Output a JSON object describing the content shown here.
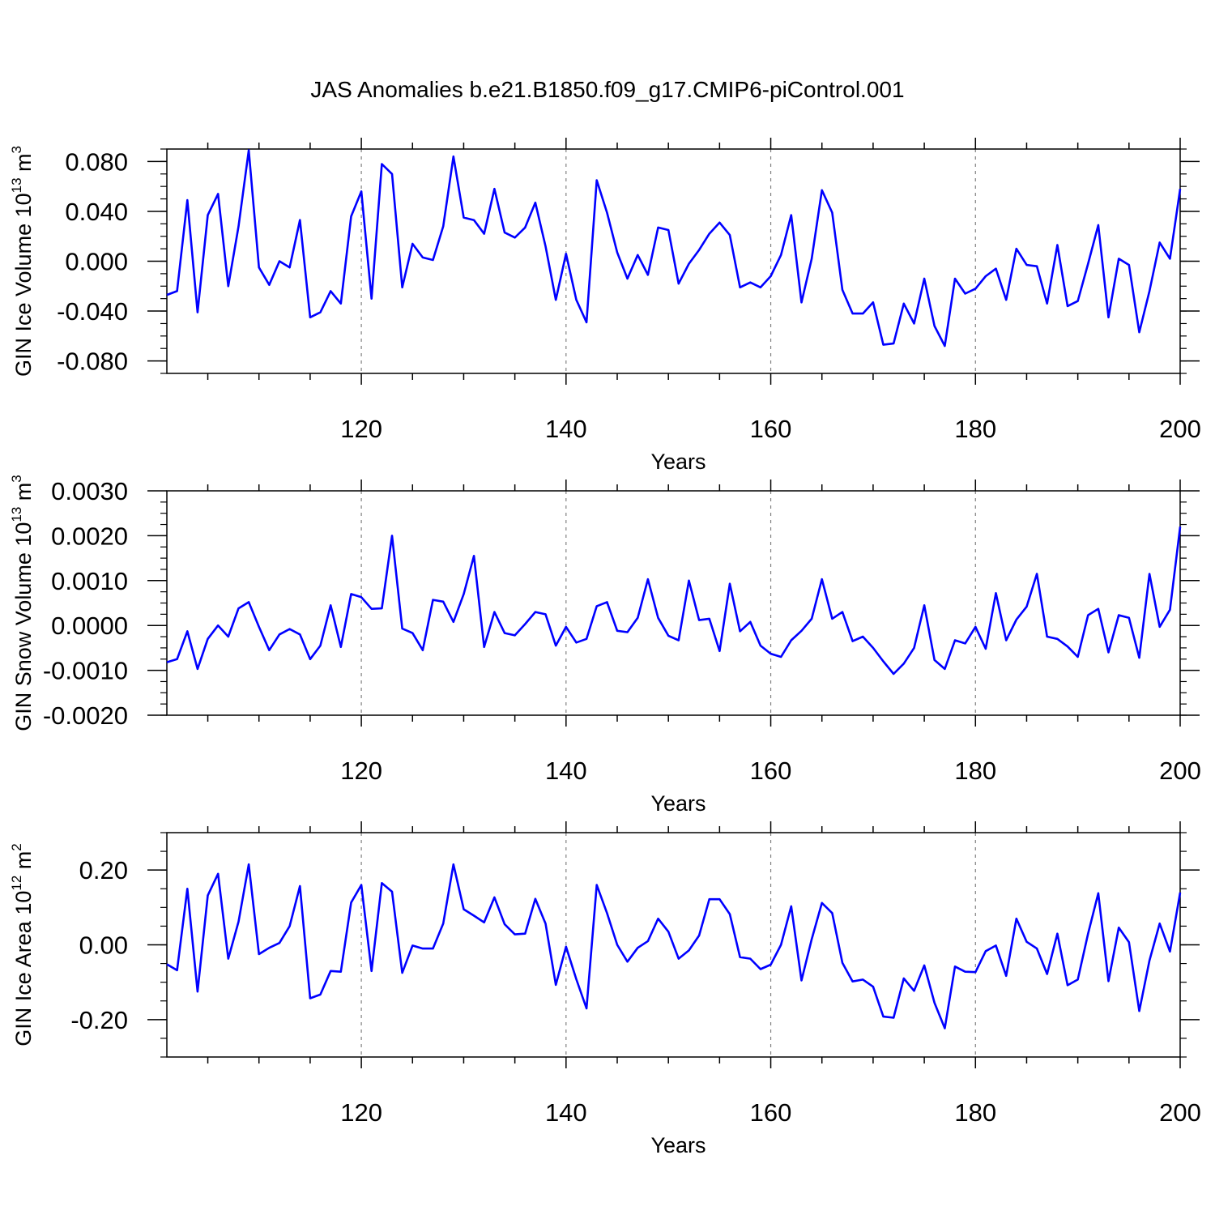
{
  "title": "JAS Anomalies b.e21.B1850.f09_g17.CMIP6-piControl.001",
  "colors": {
    "line": "#0000ff",
    "axis": "#000000",
    "grid": "#808080"
  },
  "chart_data": [
    {
      "type": "line",
      "xlabel": "Years",
      "ylabel": {
        "main": "GIN Ice Volume 10",
        "exp": "13",
        "unit": " m",
        "unit_exp": "3"
      },
      "xlim": [
        101,
        200
      ],
      "ylim": [
        -0.09,
        0.09
      ],
      "xticks": [
        "120",
        "140",
        "160",
        "180",
        "200"
      ],
      "yticks": [
        "0.080",
        "0.040",
        "0.000",
        "-0.040",
        "-0.080"
      ],
      "ytick_values": [
        0.08,
        0.04,
        0.0,
        -0.04,
        -0.08
      ],
      "x_start": 101,
      "values": [
        -0.027,
        -0.024,
        0.049,
        -0.041,
        0.037,
        0.054,
        -0.02,
        0.028,
        0.089,
        -0.005,
        -0.019,
        0.0,
        -0.005,
        0.033,
        -0.045,
        -0.041,
        -0.024,
        -0.034,
        0.036,
        0.056,
        -0.03,
        0.078,
        0.07,
        -0.021,
        0.014,
        0.003,
        0.001,
        0.028,
        0.084,
        0.035,
        0.033,
        0.022,
        0.058,
        0.023,
        0.019,
        0.027,
        0.047,
        0.012,
        -0.031,
        0.006,
        -0.031,
        -0.049,
        0.065,
        0.039,
        0.007,
        -0.014,
        0.005,
        -0.011,
        0.027,
        0.025,
        -0.018,
        -0.002,
        0.009,
        0.022,
        0.031,
        0.021,
        -0.021,
        -0.017,
        -0.021,
        -0.012,
        0.005,
        0.037,
        -0.033,
        0.002,
        0.057,
        0.039,
        -0.023,
        -0.042,
        -0.042,
        -0.033,
        -0.067,
        -0.066,
        -0.034,
        -0.05,
        -0.014,
        -0.052,
        -0.068,
        -0.014,
        -0.026,
        -0.022,
        -0.012,
        -0.006,
        -0.031,
        0.01,
        -0.003,
        -0.004,
        -0.034,
        0.013,
        -0.036,
        -0.032,
        -0.002,
        0.029,
        -0.045,
        0.002,
        -0.003,
        -0.057,
        -0.024,
        0.015,
        0.002,
        0.058
      ]
    },
    {
      "type": "line",
      "xlabel": "Years",
      "ylabel": {
        "main": "GIN Snow Volume 10",
        "exp": "13",
        "unit": " m",
        "unit_exp": "3"
      },
      "xlim": [
        101,
        200
      ],
      "ylim": [
        -0.002,
        0.003
      ],
      "xticks": [
        "120",
        "140",
        "160",
        "180",
        "200"
      ],
      "yticks": [
        "0.0030",
        "0.0020",
        "0.0010",
        "0.0000",
        "-0.0010",
        "-0.0020"
      ],
      "ytick_values": [
        0.003,
        0.002,
        0.001,
        0.0,
        -0.001,
        -0.002
      ],
      "x_start": 101,
      "values": [
        -0.00082,
        -0.00075,
        -0.00013,
        -0.00097,
        -0.0003,
        0.0,
        -0.00025,
        0.00038,
        0.00052,
        -3e-05,
        -0.00055,
        -0.0002,
        -8e-05,
        -0.0002,
        -0.00075,
        -0.00045,
        0.00045,
        -0.00048,
        0.0007,
        0.00063,
        0.00037,
        0.00038,
        0.002,
        -7e-05,
        -0.00017,
        -0.00055,
        0.00057,
        0.00053,
        8e-05,
        0.0007,
        0.00155,
        -0.00048,
        0.0003,
        -0.00017,
        -0.00022,
        3e-05,
        0.0003,
        0.00025,
        -0.00045,
        -3e-05,
        -0.00038,
        -0.0003,
        0.00043,
        0.00052,
        -0.00012,
        -0.00015,
        0.00017,
        0.00103,
        0.00017,
        -0.00023,
        -0.00033,
        0.001,
        0.00012,
        0.00015,
        -0.00057,
        0.00093,
        -0.00013,
        8e-05,
        -0.00045,
        -0.00063,
        -0.0007,
        -0.00033,
        -0.00012,
        0.00015,
        0.00103,
        0.00015,
        0.0003,
        -0.00035,
        -0.00025,
        -0.0005,
        -0.0008,
        -0.00108,
        -0.00085,
        -0.0005,
        0.00045,
        -0.00077,
        -0.00097,
        -0.00033,
        -0.0004,
        -3e-05,
        -0.00052,
        0.00072,
        -0.00033,
        0.00013,
        0.00042,
        0.00115,
        -0.00025,
        -0.0003,
        -0.00047,
        -0.0007,
        0.00023,
        0.00037,
        -0.0006,
        0.00023,
        0.00017,
        -0.00072,
        0.00115,
        -3e-05,
        0.00035,
        0.0022
      ]
    },
    {
      "type": "line",
      "xlabel": "Years",
      "ylabel": {
        "main": "GIN Ice Area 10",
        "exp": "12",
        "unit": " m",
        "unit_exp": "2"
      },
      "xlim": [
        101,
        200
      ],
      "ylim": [
        -0.3,
        0.3
      ],
      "xticks": [
        "120",
        "140",
        "160",
        "180",
        "200"
      ],
      "yticks": [
        "0.20",
        "0.00",
        "-0.20"
      ],
      "ytick_values": [
        0.2,
        0.0,
        -0.2
      ],
      "x_start": 101,
      "values": [
        -0.052,
        -0.068,
        0.15,
        -0.125,
        0.132,
        0.19,
        -0.037,
        0.062,
        0.215,
        -0.025,
        -0.008,
        0.005,
        0.05,
        0.157,
        -0.143,
        -0.133,
        -0.07,
        -0.072,
        0.113,
        0.16,
        -0.07,
        0.165,
        0.142,
        -0.075,
        -0.002,
        -0.01,
        -0.01,
        0.057,
        0.215,
        0.095,
        0.078,
        0.06,
        0.127,
        0.055,
        0.028,
        0.03,
        0.123,
        0.057,
        -0.107,
        -0.005,
        -0.092,
        -0.17,
        0.16,
        0.085,
        0.0,
        -0.045,
        -0.008,
        0.01,
        0.07,
        0.035,
        -0.037,
        -0.015,
        0.025,
        0.122,
        0.122,
        0.082,
        -0.033,
        -0.037,
        -0.065,
        -0.053,
        0.0,
        0.103,
        -0.095,
        0.015,
        0.112,
        0.085,
        -0.048,
        -0.098,
        -0.093,
        -0.112,
        -0.192,
        -0.195,
        -0.09,
        -0.123,
        -0.055,
        -0.155,
        -0.223,
        -0.058,
        -0.072,
        -0.073,
        -0.017,
        -0.002,
        -0.083,
        0.07,
        0.008,
        -0.01,
        -0.078,
        0.03,
        -0.108,
        -0.093,
        0.03,
        0.138,
        -0.097,
        0.046,
        0.007,
        -0.177,
        -0.042,
        0.057,
        -0.018,
        0.14
      ]
    }
  ]
}
